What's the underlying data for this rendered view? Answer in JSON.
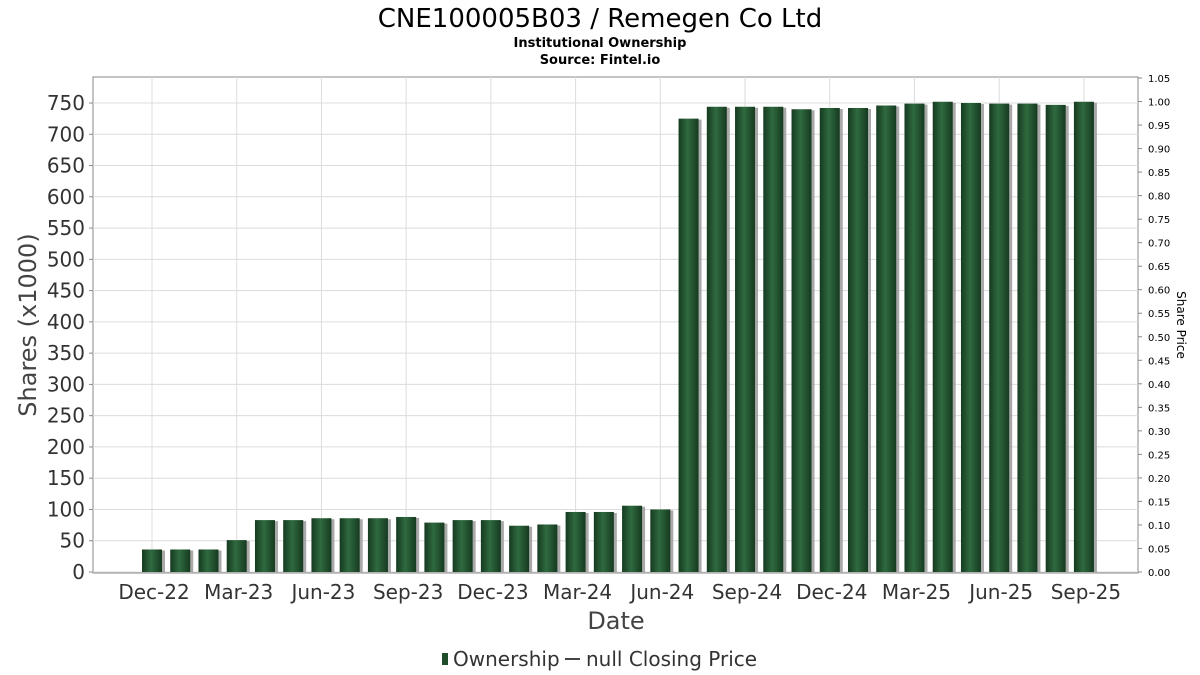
{
  "chart_data": {
    "type": "bar",
    "title": "CNE100005B03 / Remegen Co Ltd",
    "subtitle": "Institutional Ownership",
    "source": "Source: Fintel.io",
    "xlabel": "Date",
    "ylabel": "Shares (x1000)",
    "y2label": "Share Price",
    "ylim": [
      0,
      775
    ],
    "y_ticks": [
      0,
      50,
      100,
      150,
      200,
      250,
      300,
      350,
      400,
      450,
      500,
      550,
      600,
      650,
      700,
      750
    ],
    "y2lim": [
      0,
      1.05
    ],
    "y2_ticks": [
      "0.00",
      "0.05",
      "0.10",
      "0.15",
      "0.20",
      "0.25",
      "0.30",
      "0.35",
      "0.40",
      "0.45",
      "0.50",
      "0.55",
      "0.60",
      "0.65",
      "0.70",
      "0.75",
      "0.80",
      "0.85",
      "0.90",
      "0.95",
      "1.00",
      "1.05"
    ],
    "x_tick_labels": [
      "Dec-22",
      "Mar-23",
      "Jun-23",
      "Sep-23",
      "Dec-23",
      "Mar-24",
      "Jun-24",
      "Sep-24",
      "Dec-24",
      "Mar-25",
      "Jun-25",
      "Sep-25"
    ],
    "grid": true,
    "legend_position": "bottom",
    "series": [
      {
        "name": "Ownership",
        "color": "#1f4d2b",
        "values": [
          36,
          36,
          36,
          51,
          83,
          83,
          86,
          86,
          86,
          88,
          79,
          83,
          83,
          74,
          76,
          96,
          96,
          106,
          100,
          725,
          744,
          744,
          744,
          740,
          742,
          742,
          746,
          749,
          752,
          750,
          749,
          749,
          747,
          752
        ]
      }
    ],
    "legend": [
      {
        "label": "Ownership",
        "color": "#1f4d2b",
        "kind": "bar"
      },
      {
        "label": "null Closing Price",
        "color": "#444444",
        "kind": "line"
      }
    ]
  }
}
